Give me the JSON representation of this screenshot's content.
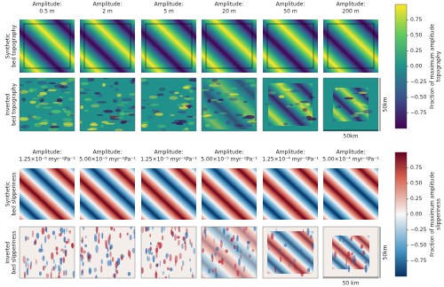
{
  "topography": {
    "columns": [
      {
        "label": "Amplitude:",
        "value": "0.5 m"
      },
      {
        "label": "Amplitude:",
        "value": "2 m"
      },
      {
        "label": "Amplitude:",
        "value": "5 m"
      },
      {
        "label": "Amplitude:",
        "value": "20 m"
      },
      {
        "label": "Amplitude:",
        "value": "50 m"
      },
      {
        "label": "Amplitude:",
        "value": "200 m"
      }
    ],
    "rows": [
      [
        "Synthetic",
        "bed topography"
      ],
      [
        "Inverted",
        "bed topography"
      ]
    ],
    "colorbar": {
      "label": [
        "Fraction of maximum amplitude",
        "topography"
      ],
      "lim": [
        -1,
        1
      ],
      "ticks": [
        {
          "value": 0.75,
          "label": "0.75"
        },
        {
          "value": 0.5,
          "label": "0.50"
        },
        {
          "value": 0.25,
          "label": "0.25"
        },
        {
          "value": 0,
          "label": "0.00"
        },
        {
          "value": -0.25,
          "label": "−0.25"
        },
        {
          "value": -0.5,
          "label": "−0.50"
        },
        {
          "value": -0.75,
          "label": "−0.75"
        }
      ]
    },
    "scale_vertical": "50km",
    "scale_horizontal": "50km"
  },
  "slipperiness": {
    "columns": [
      {
        "label": "Amplitude:",
        "value": "1.25×10⁻⁶ myr⁻¹Pa⁻¹"
      },
      {
        "label": "Amplitude:",
        "value": "5.00×10⁻⁶ myr⁻¹Pa⁻¹"
      },
      {
        "label": "Amplitude:",
        "value": "1.25×10⁻⁵ myr⁻¹Pa⁻¹"
      },
      {
        "label": "Amplitude:",
        "value": "5.00×10⁻⁵ myr⁻¹Pa⁻¹"
      },
      {
        "label": "Amplitude:",
        "value": "1.25×10⁻⁴ myr⁻¹Pa⁻¹"
      },
      {
        "label": "Amplitude:",
        "value": "5.00×10⁻⁴ myr⁻¹Pa⁻¹"
      }
    ],
    "rows": [
      [
        "Synthetic",
        "bed slipperiness"
      ],
      [
        "Inverted",
        "bed slipperiness"
      ]
    ],
    "colorbar": {
      "label": [
        "Fraction of maximum amplitude",
        "slipperiness"
      ],
      "lim": [
        -1,
        1
      ],
      "ticks": [
        {
          "value": 0.75,
          "label": "0.75"
        },
        {
          "value": 0.5,
          "label": "0.50"
        },
        {
          "value": 0.25,
          "label": "0.25"
        },
        {
          "value": 0,
          "label": "0.00"
        },
        {
          "value": -0.25,
          "label": "−0.25"
        },
        {
          "value": -0.5,
          "label": "−0.50"
        },
        {
          "value": -0.75,
          "label": "−0.75"
        }
      ]
    },
    "scale_vertical": "50km",
    "scale_horizontal": "50 km"
  }
}
